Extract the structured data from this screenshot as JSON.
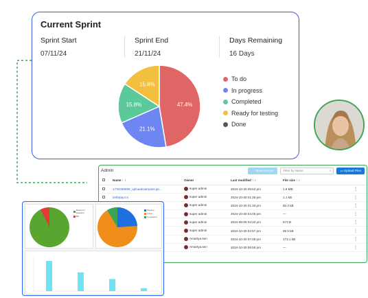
{
  "sprint": {
    "title": "Current Sprint",
    "start_label": "Sprint Start",
    "start_value": "07/11/24",
    "end_label": "Sprint End",
    "end_value": "21/11/24",
    "remaining_label": "Days Remaining",
    "remaining_value": "16 Days",
    "pie_labels": [
      "47.4%",
      "21.1%",
      "15.8%",
      "15.8%"
    ],
    "legend": [
      {
        "label": "To do",
        "color": "#e06666"
      },
      {
        "label": "In progress",
        "color": "#6d86f2"
      },
      {
        "label": "Completed",
        "color": "#5cc99a"
      },
      {
        "label": "Ready for testing",
        "color": "#f2bf3f"
      },
      {
        "label": "Done",
        "color": "#555555"
      }
    ]
  },
  "chart_data": {
    "type": "pie",
    "categories": [
      "To do",
      "In progress",
      "Completed",
      "Ready for testing",
      "Done"
    ],
    "values": [
      47.4,
      21.1,
      15.8,
      15.8,
      0
    ]
  },
  "admin": {
    "title": "Admin",
    "more_actions": "⋮ More Actions",
    "filter_placeholder": "Filter by Name",
    "upload": "Upload Files",
    "columns": {
      "name": "Name ↑ ↕",
      "owner": "Owner",
      "modified": "Last modified ↑ ↕",
      "size": "File size ↑ ↕"
    },
    "rows": [
      {
        "name": "1730285989_uploadexamples.pp...",
        "owner": "super admin",
        "modified": "2024-10-30 05:52 pm",
        "size": "1.8 MB"
      },
      {
        "name": "birthday.ics",
        "owner": "super admin",
        "modified": "2024-10-30 01:35 pm",
        "size": "1.1 kB"
      },
      {
        "name": "",
        "owner": "super admin",
        "modified": "2024-10-30 01:33 pm",
        "size": "60.2 kB"
      },
      {
        "name": "",
        "owner": "super admin",
        "modified": "2024-10-30 04:45 pm",
        "size": "—"
      },
      {
        "name": "",
        "owner": "super admin",
        "modified": "2024-08-06 04:32 pm",
        "size": "573 B"
      },
      {
        "name": "",
        "owner": "super admin",
        "modified": "2024-10-30 04:57 pm",
        "size": "99.9 kB"
      },
      {
        "name": "",
        "owner": "Amartya.sen",
        "modified": "2024-10-30 07:48 pm",
        "size": "173.1 kB"
      },
      {
        "name": "",
        "owner": "Amartya.sen",
        "modified": "2024-10-30 06:55 pm",
        "size": "—"
      }
    ]
  },
  "dashboard": {
    "legend_1": [
      "Ready for Deadline",
      "Bill"
    ],
    "legend_2": [
      "Pipeline",
      "Active",
      "Completed"
    ],
    "bar_values": [
      100,
      62,
      40,
      10
    ]
  }
}
